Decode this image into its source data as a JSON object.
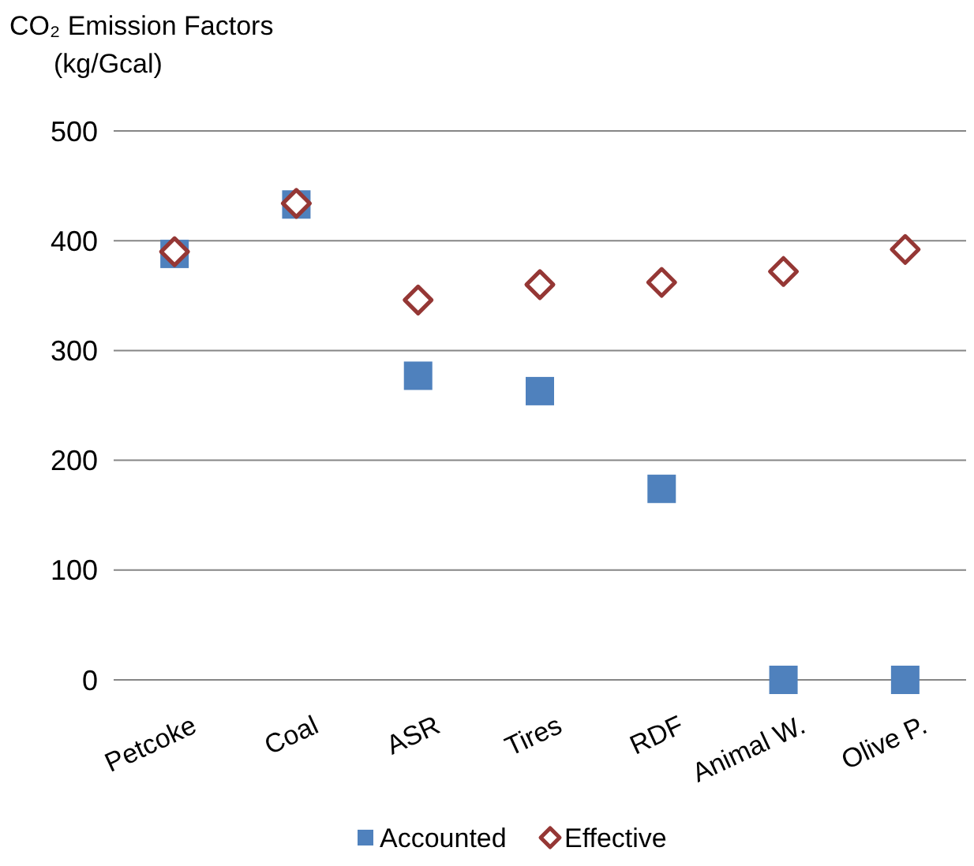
{
  "chart_data": {
    "type": "scatter",
    "title": "CO₂ Emission Factors",
    "subtitle": "(kg/Gcal)",
    "categories": [
      "Petcoke",
      "Coal",
      "ASR",
      "Tires",
      "RDF",
      "Animal W.",
      "Olive P."
    ],
    "series": [
      {
        "name": "Accounted",
        "color": "#4f81bd",
        "marker": "square",
        "values": [
          388,
          433,
          277,
          263,
          174,
          0,
          0
        ]
      },
      {
        "name": "Effective",
        "color": "#953735",
        "marker": "diamond",
        "values": [
          390,
          434,
          346,
          360,
          362,
          372,
          392
        ]
      }
    ],
    "ylim": [
      0,
      500
    ],
    "yticks": [
      0,
      100,
      200,
      300,
      400,
      500
    ],
    "grid": "y",
    "legend": "bottom"
  }
}
